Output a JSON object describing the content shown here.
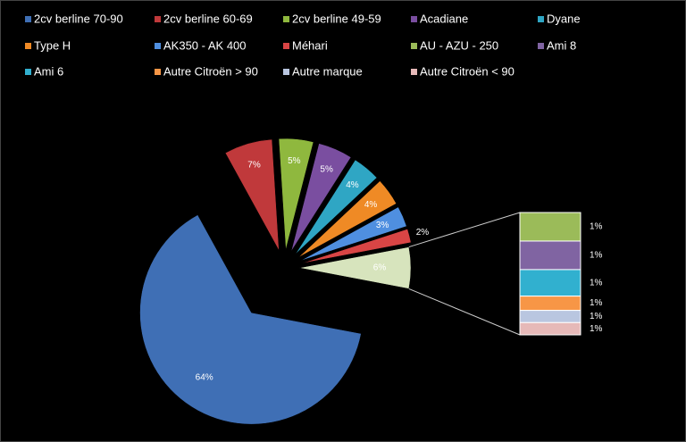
{
  "chart_data": {
    "type": "pie-of-bar",
    "categories": [
      "2cv berline 70-90",
      "2cv berline 60-69",
      "2cv berline 49-59",
      "Acadiane",
      "Dyane",
      "Type H",
      "AK350 - AK 400",
      "Méhari",
      "AU - AZU - 250",
      "Ami 8",
      "Ami 6",
      "Autre Citroën > 90",
      "Autre marque",
      "Autre Citroën < 90"
    ],
    "values": [
      64,
      7,
      5,
      5,
      4,
      4,
      3,
      2,
      1.4,
      1.4,
      1.3,
      0.7,
      0.6,
      0.6
    ],
    "value_labels": [
      "64%",
      "7%",
      "5%",
      "5%",
      "4%",
      "4%",
      "3%",
      "2%",
      "1%",
      "1%",
      "1%",
      "1%",
      "1%",
      "1%"
    ],
    "colors": [
      "#3f6fb5",
      "#c0393b",
      "#8fb83e",
      "#7a4ea0",
      "#2fa6c4",
      "#ef8a25",
      "#4f8fe0",
      "#d94545",
      "#9bbb59",
      "#8064a2",
      "#31b0cf",
      "#f79646",
      "#b9c6e0",
      "#e6b9b8"
    ],
    "pie_count": 8,
    "other_value": 6,
    "other_label": "6%",
    "other_color": "#d7e4bd"
  }
}
